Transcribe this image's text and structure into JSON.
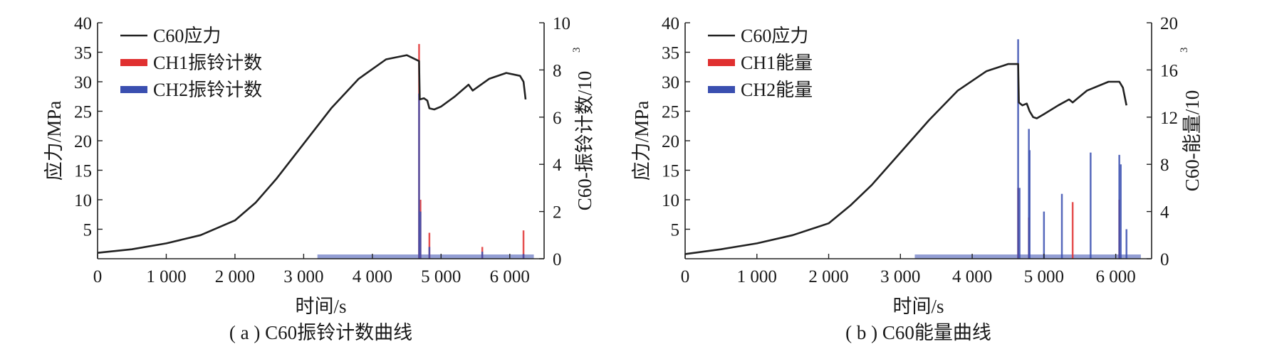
{
  "chart_data": [
    {
      "type": "line",
      "caption": "( a ) C60振铃计数曲线",
      "xlabel": "时间/s",
      "ylabel": "应力/MPa",
      "y2label": "C60-振铃计数/10",
      "y2label_exp": "3",
      "xlim": [
        0,
        6500
      ],
      "ylim": [
        0,
        40
      ],
      "y2lim": [
        0,
        10
      ],
      "x_ticks": [
        "0",
        "1 000",
        "2 000",
        "3 000",
        "4 000",
        "5 000",
        "6 000"
      ],
      "y_ticks": [
        "5",
        "10",
        "15",
        "20",
        "25",
        "30",
        "35",
        "40"
      ],
      "y2_ticks": [
        "0",
        "2",
        "4",
        "6",
        "8",
        "10"
      ],
      "legend": [
        "C60应力",
        "CH1振铃计数",
        "CH2振铃计数"
      ],
      "colors": {
        "stress": "#222222",
        "ch1": "#e03030",
        "ch2": "#3a4fb0"
      },
      "stress": {
        "x": [
          0,
          500,
          1000,
          1500,
          2000,
          2300,
          2600,
          3000,
          3400,
          3800,
          4200,
          4500,
          4680,
          4690,
          4750,
          4800,
          4830,
          4900,
          5000,
          5200,
          5400,
          5460,
          5700,
          5950,
          6150,
          6200,
          6230
        ],
        "y": [
          1.0,
          1.6,
          2.6,
          4.0,
          6.5,
          9.5,
          13.5,
          19.5,
          25.5,
          30.5,
          33.8,
          34.5,
          33.5,
          27.0,
          27.2,
          26.8,
          25.5,
          25.3,
          25.8,
          27.5,
          29.5,
          28.5,
          30.5,
          31.5,
          31.0,
          30.0,
          27.0
        ]
      },
      "ch1": {
        "x": [
          4680,
          4700,
          4830,
          5600,
          6200
        ],
        "y": [
          9.1,
          2.5,
          1.1,
          0.5,
          1.2
        ]
      },
      "ch2": {
        "x": [
          4680,
          4700,
          4830,
          5600,
          6200
        ],
        "y": [
          7.0,
          2.0,
          0.5,
          0.3,
          0.2
        ]
      }
    },
    {
      "type": "line",
      "caption": "( b ) C60能量曲线",
      "xlabel": "时间/s",
      "ylabel": "应力/MPa",
      "y2label": "C60-能量/10",
      "y2label_exp": "3",
      "xlim": [
        0,
        6500
      ],
      "ylim": [
        0,
        40
      ],
      "y2lim": [
        0,
        20
      ],
      "x_ticks": [
        "0",
        "1 000",
        "2 000",
        "3 000",
        "4 000",
        "5 000",
        "6 000"
      ],
      "y_ticks": [
        "5",
        "10",
        "15",
        "20",
        "25",
        "30",
        "35",
        "40"
      ],
      "y2_ticks": [
        "0",
        "4",
        "8",
        "12",
        "16",
        "20"
      ],
      "legend": [
        "C60应力",
        "CH1能量",
        "CH2能量"
      ],
      "colors": {
        "stress": "#222222",
        "ch1": "#e03030",
        "ch2": "#3a4fb0"
      },
      "stress": {
        "x": [
          0,
          500,
          1000,
          1500,
          2000,
          2300,
          2600,
          3000,
          3400,
          3800,
          4200,
          4500,
          4640,
          4650,
          4700,
          4760,
          4800,
          4850,
          4900,
          5000,
          5200,
          5350,
          5400,
          5450,
          5600,
          5900,
          6050,
          6100,
          6150
        ],
        "y": [
          0.8,
          1.6,
          2.6,
          4.0,
          6.0,
          9.0,
          12.5,
          18.0,
          23.5,
          28.5,
          31.8,
          33.0,
          33.0,
          26.5,
          26.0,
          26.3,
          25.0,
          24.0,
          23.8,
          24.5,
          26.0,
          27.0,
          26.5,
          27.0,
          28.5,
          30.0,
          30.0,
          29.0,
          26.0
        ]
      },
      "ch1": {
        "x": [
          4640,
          4790,
          5400,
          6050
        ],
        "y": [
          6.0,
          3.5,
          4.8,
          5.0
        ]
      },
      "ch2": {
        "x": [
          4640,
          4660,
          4790,
          4800,
          5000,
          5250,
          5650,
          6050,
          6070,
          6150
        ],
        "y": [
          18.6,
          6.0,
          11.0,
          9.2,
          4.0,
          5.5,
          9.0,
          8.8,
          8.0,
          2.5
        ]
      }
    }
  ]
}
